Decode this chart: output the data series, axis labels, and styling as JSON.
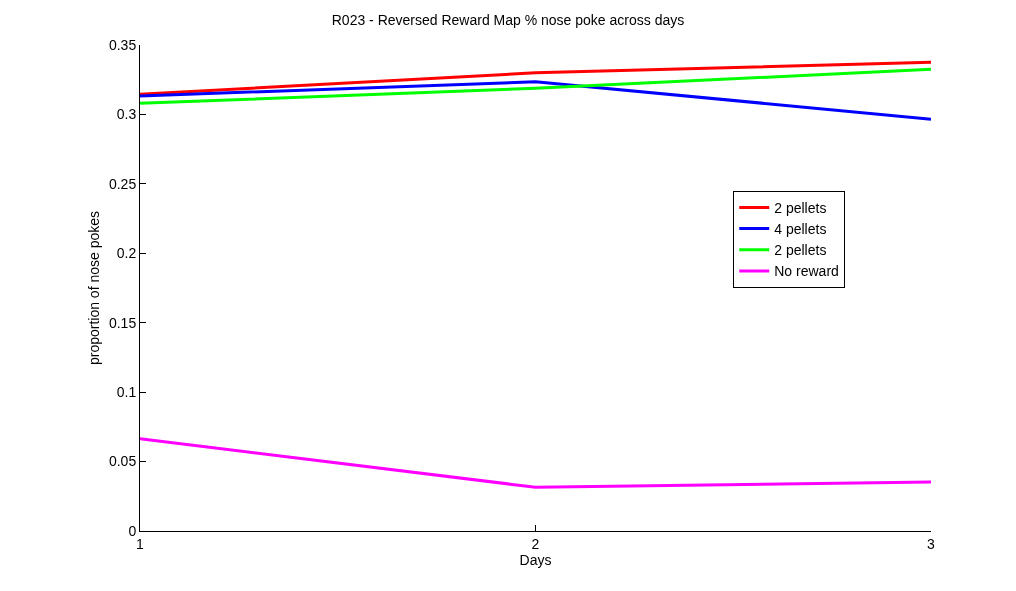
{
  "chart_data": {
    "type": "line",
    "title": "R023 - Reversed Reward Map % nose poke across days",
    "xlabel": "Days",
    "ylabel": "proportion of nose pokes",
    "x": [
      1,
      2,
      3
    ],
    "series": [
      {
        "name": "2 pellets",
        "color": "#ff0000",
        "values": [
          0.3145,
          0.33,
          0.3376
        ]
      },
      {
        "name": "4 pellets",
        "color": "#0000ff",
        "values": [
          0.3133,
          0.3235,
          0.2966
        ]
      },
      {
        "name": "2 pellets",
        "color": "#00ff00",
        "values": [
          0.308,
          0.3188,
          0.3325
        ]
      },
      {
        "name": "No reward",
        "color": "#ff00ff",
        "values": [
          0.0664,
          0.0315,
          0.0353
        ]
      }
    ],
    "xlim": [
      1,
      3
    ],
    "xticks": [
      1,
      2,
      3
    ],
    "ylim": [
      0,
      0.35
    ],
    "yticks": [
      0,
      0.05,
      0.1,
      0.15,
      0.2,
      0.25,
      0.3,
      0.35
    ],
    "legend": "right",
    "marker": "none",
    "line_style": "solid"
  }
}
